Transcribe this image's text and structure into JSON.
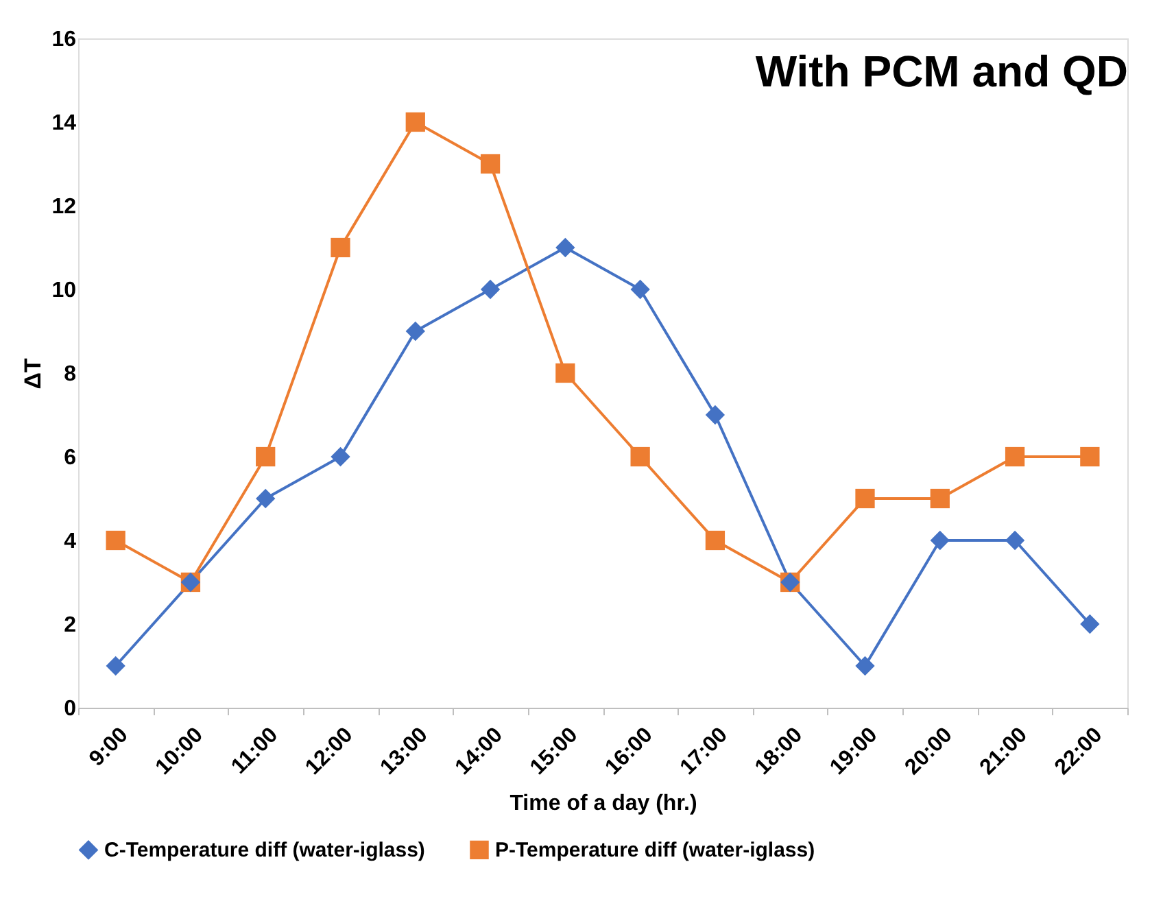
{
  "chart_data": {
    "type": "line",
    "title": "With PCM and QD",
    "xlabel": "Time of a day (hr.)",
    "ylabel": "ΔT",
    "categories": [
      "9:00",
      "10:00",
      "11:00",
      "12:00",
      "13:00",
      "14:00",
      "15:00",
      "16:00",
      "17:00",
      "18:00",
      "19:00",
      "20:00",
      "21:00",
      "22:00"
    ],
    "series": [
      {
        "name": "C-Temperature diff (water-iglass)",
        "color": "#4472c4",
        "marker": "diamond",
        "values": [
          1,
          3,
          5,
          6,
          9,
          10,
          11,
          10,
          7,
          3,
          1,
          4,
          4,
          2
        ]
      },
      {
        "name": "P-Temperature diff (water-iglass)",
        "color": "#ed7d31",
        "marker": "square",
        "values": [
          4,
          3,
          6,
          11,
          14,
          13,
          8,
          6,
          4,
          3,
          5,
          5,
          6,
          6
        ]
      }
    ],
    "ylim": [
      0,
      16
    ],
    "yticks": [
      0,
      2,
      4,
      6,
      8,
      10,
      12,
      14,
      16
    ],
    "grid": false,
    "legend": "bottom",
    "line_style": "solid"
  }
}
